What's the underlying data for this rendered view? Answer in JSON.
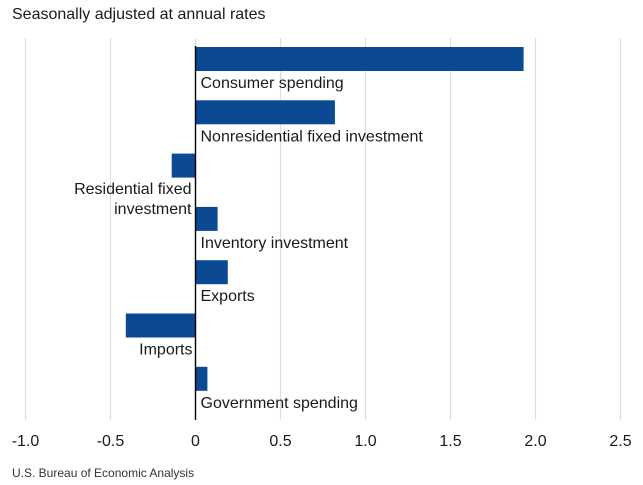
{
  "chart_data": {
    "type": "bar",
    "orientation": "horizontal",
    "subtitle": "Seasonally adjusted at annual rates",
    "source": "U.S. Bureau of Economic Analysis",
    "xlim": [
      -1.0,
      2.5
    ],
    "xticks": [
      "-1.0",
      "-0.5",
      "0",
      "0.5",
      "1.0",
      "1.5",
      "2.0",
      "2.5"
    ],
    "grid": "vertical",
    "bar_color": "#0b4a92",
    "categories": [
      "Consumer spending",
      "Nonresidential fixed investment",
      [
        "Residential fixed",
        "investment"
      ],
      "Inventory investment",
      "Exports",
      "Imports",
      "Government spending"
    ],
    "values": [
      1.93,
      0.82,
      -0.14,
      0.13,
      0.19,
      -0.41,
      0.07
    ]
  }
}
